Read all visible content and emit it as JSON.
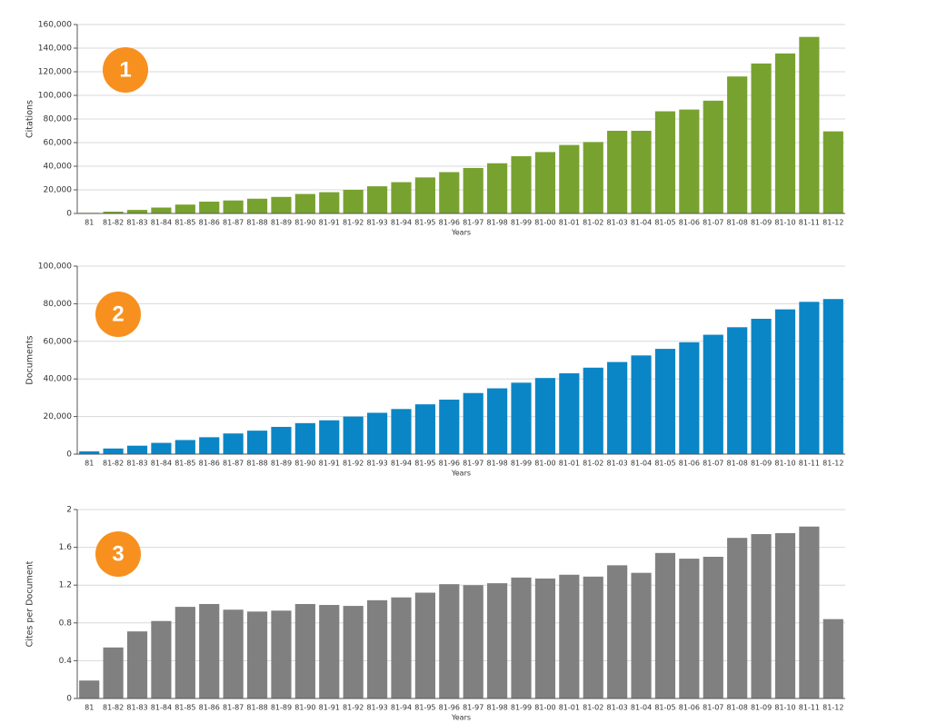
{
  "chart_data": [
    {
      "type": "bar",
      "annotation": "1",
      "ylabel": "Citations",
      "xlabel": "Years",
      "color": "#78a22f",
      "grid": true,
      "categories": [
        "81",
        "81-82",
        "81-83",
        "81-84",
        "81-85",
        "81-86",
        "81-87",
        "81-88",
        "81-89",
        "81-90",
        "81-91",
        "81-92",
        "81-93",
        "81-94",
        "81-95",
        "81-96",
        "81-97",
        "81-98",
        "81-99",
        "81-00",
        "81-01",
        "81-02",
        "81-03",
        "81-04",
        "81-05",
        "81-06",
        "81-07",
        "81-08",
        "81-09",
        "81-10",
        "81-11",
        "81-12"
      ],
      "values": [
        500,
        1500,
        3000,
        5000,
        7500,
        10000,
        11000,
        12500,
        14000,
        16500,
        18000,
        20000,
        23000,
        26500,
        30500,
        35000,
        38500,
        42500,
        48500,
        52000,
        58000,
        60500,
        70000,
        70000,
        86500,
        88000,
        95500,
        116000,
        127000,
        135500,
        149500,
        69500
      ],
      "ylim": [
        0,
        160000
      ],
      "yticks": [
        0,
        {
          "value": 20000,
          "label": "20,000"
        },
        {
          "value": 40000,
          "label": "40,000"
        },
        {
          "value": 60000,
          "label": "60,000"
        },
        {
          "value": 80000,
          "label": "80,000"
        },
        {
          "value": 100000,
          "label": "100,000"
        },
        {
          "value": 120000,
          "label": "120,000"
        },
        {
          "value": 140000,
          "label": "140,000"
        },
        {
          "value": 160000,
          "label": "160,000"
        }
      ]
    },
    {
      "type": "bar",
      "annotation": "2",
      "ylabel": "Documents",
      "xlabel": "Years",
      "color": "#0a86c6",
      "grid": true,
      "categories": [
        "81",
        "81-82",
        "81-83",
        "81-84",
        "81-85",
        "81-86",
        "81-87",
        "81-88",
        "81-89",
        "81-90",
        "81-91",
        "81-92",
        "81-93",
        "81-94",
        "81-95",
        "81-96",
        "81-97",
        "81-98",
        "81-99",
        "81-00",
        "81-01",
        "81-02",
        "81-03",
        "81-04",
        "81-05",
        "81-06",
        "81-07",
        "81-08",
        "81-09",
        "81-10",
        "81-11",
        "81-12"
      ],
      "values": [
        1500,
        3000,
        4500,
        6000,
        7500,
        9000,
        11000,
        12500,
        14500,
        16500,
        18000,
        20000,
        22000,
        24000,
        26500,
        29000,
        32500,
        35000,
        38000,
        40500,
        43000,
        46000,
        49000,
        52500,
        56000,
        59500,
        63500,
        67500,
        72000,
        77000,
        81000,
        82500
      ],
      "ylim": [
        0,
        100000
      ],
      "yticks": [
        0,
        {
          "value": 20000,
          "label": "20,000"
        },
        {
          "value": 40000,
          "label": "40,000"
        },
        {
          "value": 60000,
          "label": "60,000"
        },
        {
          "value": 80000,
          "label": "80,000"
        },
        {
          "value": 100000,
          "label": "100,000"
        }
      ]
    },
    {
      "type": "bar",
      "annotation": "3",
      "ylabel": "Cites per Document",
      "xlabel": "Years",
      "color": "#808080",
      "grid": true,
      "categories": [
        "81",
        "81-82",
        "81-83",
        "81-84",
        "81-85",
        "81-86",
        "81-87",
        "81-88",
        "81-89",
        "81-90",
        "81-91",
        "81-92",
        "81-93",
        "81-94",
        "81-95",
        "81-96",
        "81-97",
        "81-98",
        "81-99",
        "81-00",
        "81-01",
        "81-02",
        "81-03",
        "81-04",
        "81-05",
        "81-06",
        "81-07",
        "81-08",
        "81-09",
        "81-10",
        "81-11",
        "81-12"
      ],
      "values": [
        0.19,
        0.54,
        0.71,
        0.82,
        0.97,
        1.0,
        0.94,
        0.92,
        0.93,
        1.0,
        0.99,
        0.98,
        1.04,
        1.07,
        1.12,
        1.21,
        1.2,
        1.22,
        1.28,
        1.27,
        1.31,
        1.29,
        1.41,
        1.33,
        1.54,
        1.48,
        1.5,
        1.7,
        1.74,
        1.75,
        1.82,
        0.84
      ],
      "ylim": [
        0,
        2
      ],
      "yticks": [
        0,
        0.4,
        0.8,
        1.2,
        1.6,
        2
      ]
    }
  ]
}
